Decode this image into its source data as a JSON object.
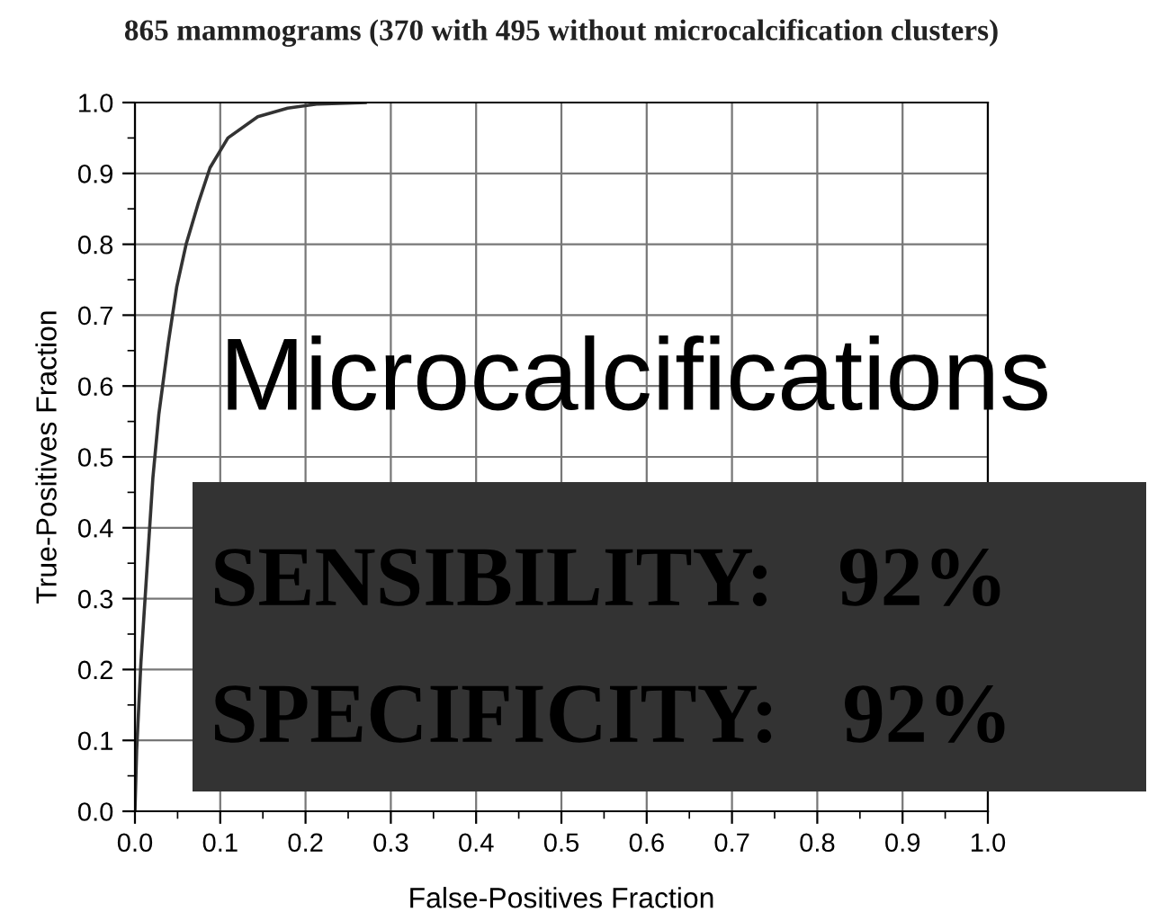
{
  "chart_data": {
    "type": "line",
    "title": "865 mammograms (370 with 495 without microcalcification clusters)",
    "xlabel": "False-Positives Fraction",
    "ylabel": "True-Positives Fraction",
    "series": [
      {
        "color": "#333333",
        "x": [
          0,
          0.002,
          0.007,
          0.014,
          0.021,
          0.028,
          0.039,
          0.049,
          0.06,
          0.074,
          0.088,
          0.109,
          0.144,
          0.179,
          0.215,
          0.27
        ],
        "values": [
          0,
          0.086,
          0.21,
          0.34,
          0.47,
          0.56,
          0.66,
          0.74,
          0.8,
          0.857,
          0.908,
          0.95,
          0.98,
          0.992,
          0.998,
          1.0
        ]
      }
    ],
    "xlim": [
      0,
      1
    ],
    "ylim": [
      0,
      1
    ],
    "xticks": [
      {
        "value": 0,
        "label": "0.0"
      },
      0.1,
      0.2,
      0.3,
      0.4,
      0.5,
      0.6,
      0.7,
      0.8,
      0.9,
      {
        "value": 1,
        "label": "1.0"
      }
    ],
    "yticks": [
      {
        "value": 0,
        "label": "0.0"
      },
      0.1,
      0.2,
      0.3,
      0.4,
      0.5,
      0.6,
      0.7,
      0.8,
      0.9,
      {
        "value": 1,
        "label": "1.0"
      }
    ],
    "grid": true,
    "marker": "none",
    "line_style": "solid",
    "annotations": [
      "Microcalcifications",
      "SENSIBILITY:   92%",
      "SPECIFICITY:   92%"
    ]
  }
}
